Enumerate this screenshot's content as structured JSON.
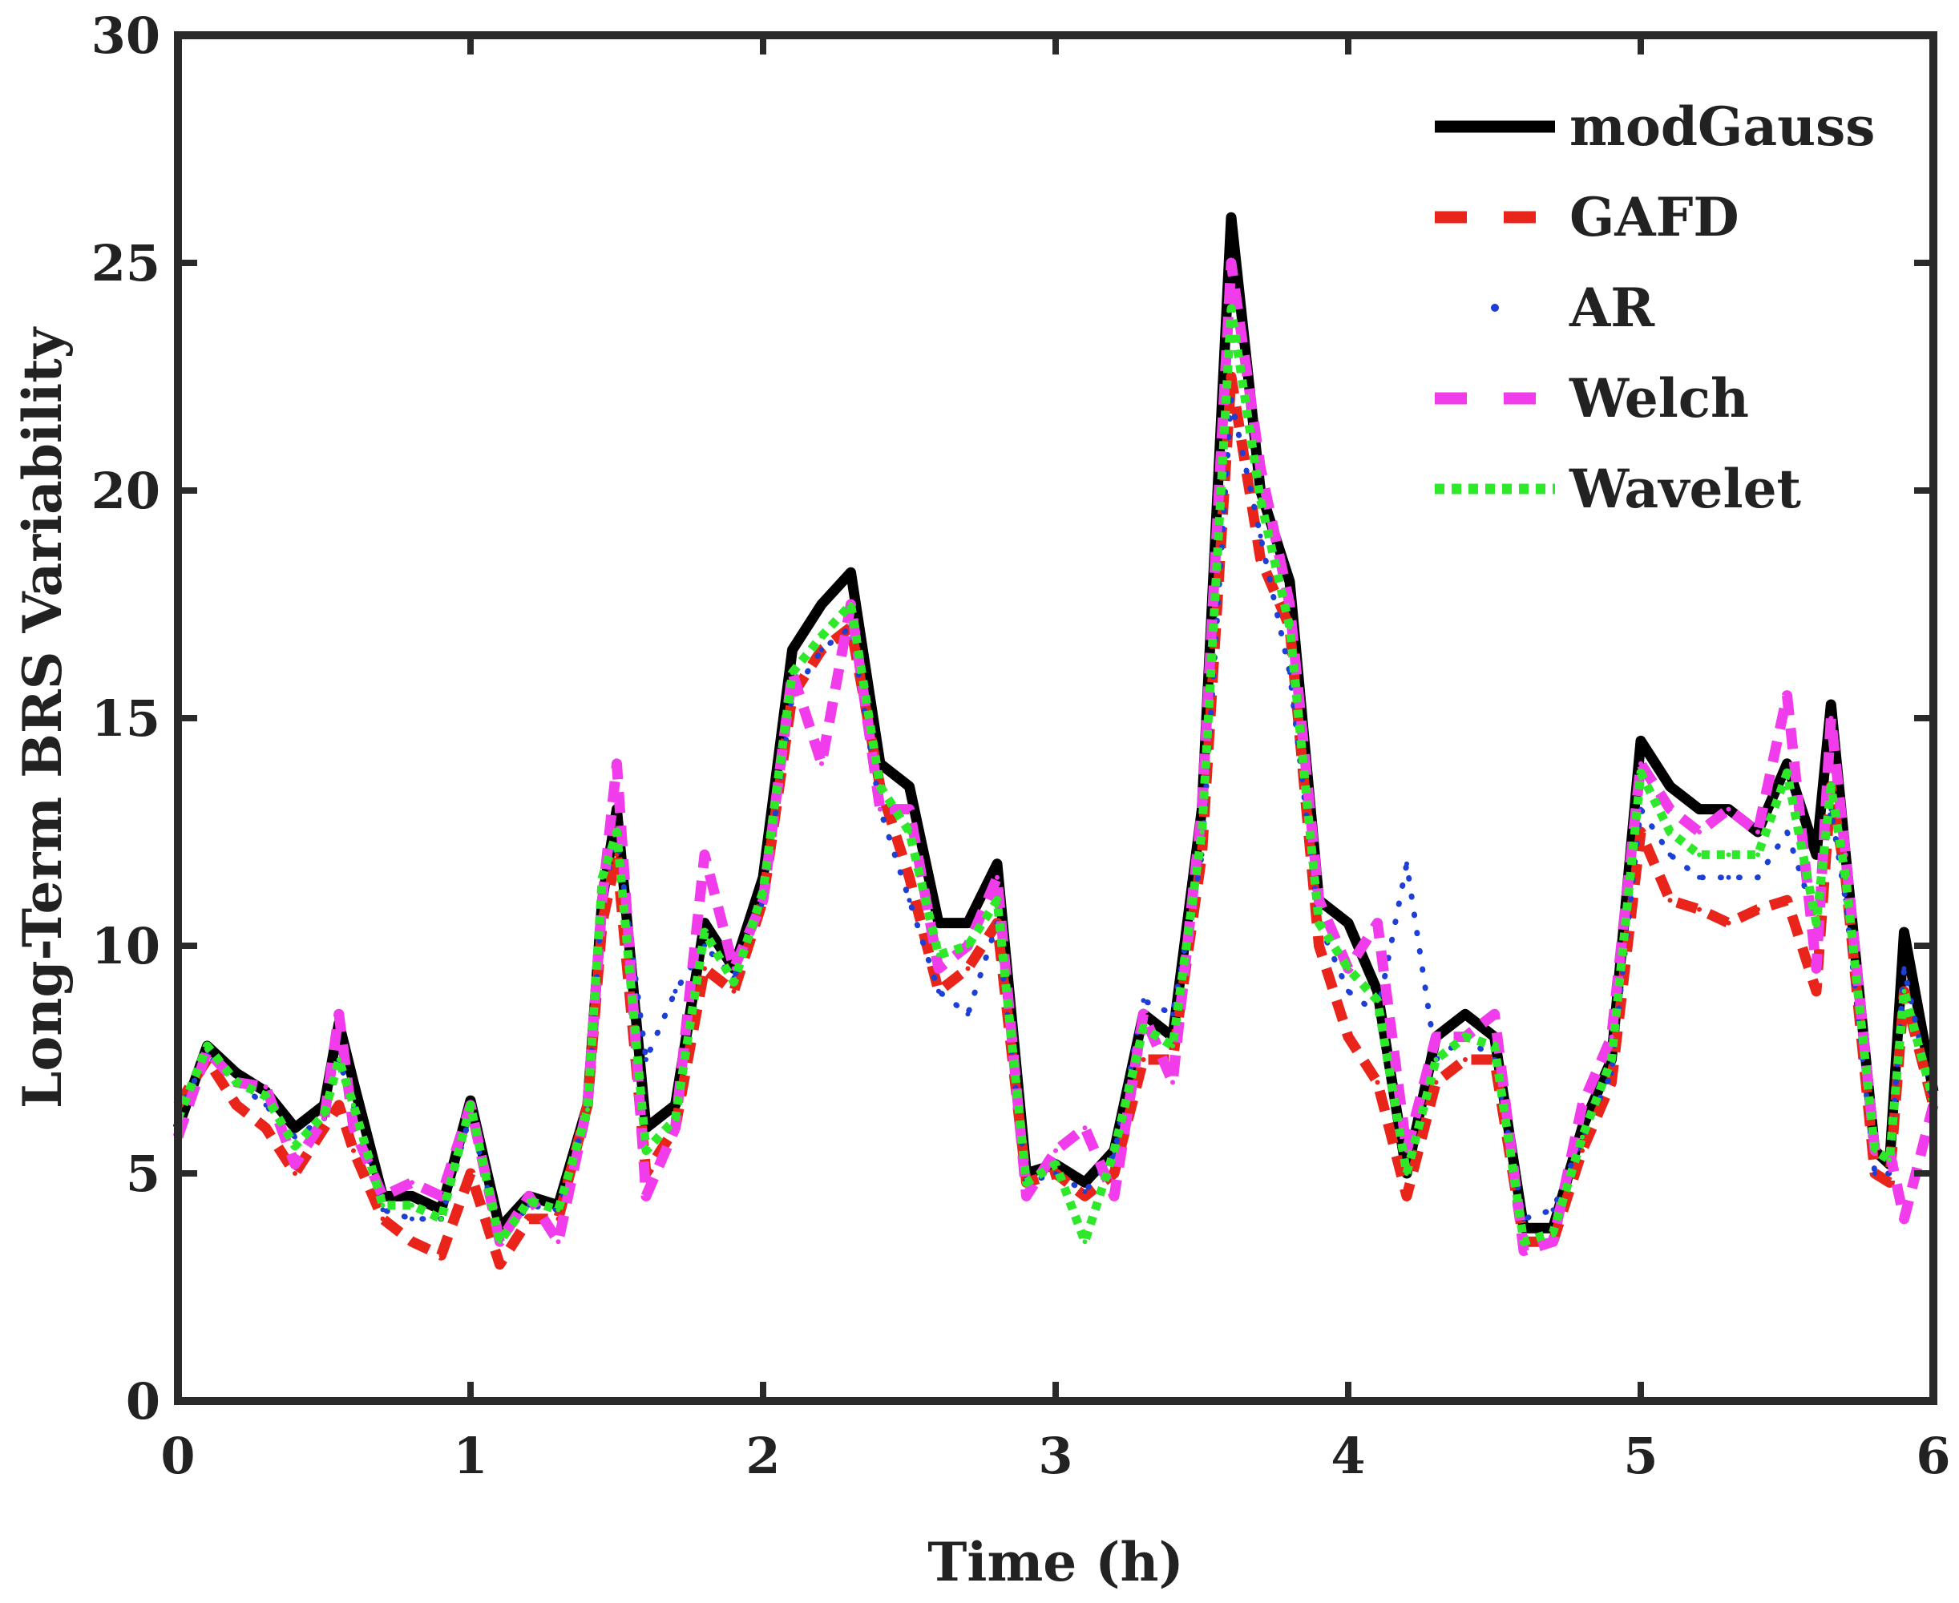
{
  "chart_data": {
    "type": "line",
    "title": "",
    "xlabel": "Time (h)",
    "ylabel": "Long-Term BRS Variability",
    "xlim": [
      0,
      6
    ],
    "ylim": [
      0,
      30
    ],
    "xticks": [
      0,
      1,
      2,
      3,
      4,
      5,
      6
    ],
    "yticks": [
      0,
      5,
      10,
      15,
      20,
      25,
      30
    ],
    "xtick_labels": [
      "0",
      "1",
      "2",
      "3",
      "4",
      "5",
      "6"
    ],
    "ytick_labels": [
      "0",
      "5",
      "10",
      "15",
      "20",
      "25",
      "30"
    ],
    "grid": false,
    "legend_position": "top-right",
    "x": [
      0,
      0.1,
      0.2,
      0.3,
      0.4,
      0.5,
      0.55,
      0.6,
      0.7,
      0.8,
      0.9,
      1.0,
      1.1,
      1.2,
      1.3,
      1.4,
      1.45,
      1.5,
      1.6,
      1.7,
      1.8,
      1.9,
      2.0,
      2.1,
      2.2,
      2.3,
      2.4,
      2.5,
      2.6,
      2.7,
      2.8,
      2.9,
      3.0,
      3.1,
      3.2,
      3.3,
      3.4,
      3.5,
      3.6,
      3.7,
      3.8,
      3.9,
      4.0,
      4.1,
      4.2,
      4.3,
      4.4,
      4.5,
      4.6,
      4.7,
      4.8,
      4.9,
      5.0,
      5.1,
      5.2,
      5.3,
      5.4,
      5.5,
      5.6,
      5.65,
      5.7,
      5.8,
      5.85,
      5.9,
      6.0
    ],
    "series": [
      {
        "name": "modGauss",
        "color": "#000000",
        "style": "solid",
        "values": [
          6.0,
          7.8,
          7.2,
          6.8,
          6.0,
          6.5,
          8.3,
          7.0,
          4.5,
          4.5,
          4.2,
          6.6,
          3.8,
          4.5,
          4.3,
          6.5,
          11.0,
          13.0,
          6.0,
          6.5,
          10.5,
          9.5,
          11.5,
          16.5,
          17.5,
          18.2,
          14.0,
          13.5,
          10.5,
          10.5,
          11.8,
          5.0,
          5.2,
          4.8,
          5.5,
          8.5,
          8.0,
          13.0,
          26.0,
          20.0,
          18.0,
          11.0,
          10.5,
          9.0,
          5.0,
          8.0,
          8.5,
          8.0,
          3.8,
          3.8,
          6.0,
          7.5,
          14.5,
          13.5,
          13.0,
          13.0,
          12.5,
          14.0,
          12.0,
          15.3,
          12.0,
          5.5,
          5.2,
          10.3,
          6.8
        ]
      },
      {
        "name": "GAFD",
        "color": "#e8241b",
        "style": "dash",
        "values": [
          6.5,
          7.5,
          6.5,
          6.0,
          5.0,
          6.0,
          6.5,
          5.5,
          4.0,
          3.5,
          3.2,
          5.0,
          3.0,
          4.0,
          4.0,
          6.5,
          10.5,
          12.0,
          5.0,
          6.0,
          9.5,
          9.0,
          11.0,
          15.5,
          16.5,
          17.0,
          13.5,
          11.5,
          9.0,
          9.5,
          10.5,
          4.8,
          5.0,
          4.5,
          5.0,
          7.5,
          7.5,
          12.0,
          22.5,
          18.5,
          17.0,
          10.0,
          8.0,
          7.0,
          4.5,
          7.0,
          7.5,
          7.5,
          3.5,
          3.5,
          5.5,
          7.0,
          12.5,
          11.0,
          10.8,
          10.5,
          10.8,
          11.0,
          9.0,
          13.5,
          11.5,
          5.0,
          4.8,
          9.0,
          6.5
        ]
      },
      {
        "name": "AR",
        "color": "#1d3fd6",
        "style": "dot-sparse",
        "values": [
          6.3,
          7.6,
          7.0,
          6.5,
          5.8,
          6.2,
          7.5,
          6.5,
          4.2,
          4.0,
          4.0,
          6.3,
          3.5,
          4.3,
          4.2,
          6.4,
          11.0,
          12.5,
          7.5,
          9.0,
          10.0,
          9.3,
          11.0,
          15.5,
          16.5,
          17.0,
          13.0,
          11.0,
          9.0,
          8.5,
          10.5,
          4.8,
          5.0,
          4.6,
          5.4,
          8.8,
          8.5,
          12.0,
          22.0,
          19.0,
          16.0,
          10.5,
          9.0,
          8.5,
          11.8,
          7.5,
          8.0,
          7.5,
          4.0,
          4.2,
          5.8,
          7.2,
          13.0,
          12.0,
          11.5,
          11.5,
          11.5,
          12.5,
          10.5,
          13.0,
          11.0,
          5.0,
          5.0,
          9.5,
          6.5
        ]
      },
      {
        "name": "Welch",
        "color": "#f03ceb",
        "style": "dash",
        "values": [
          5.8,
          7.7,
          7.0,
          6.9,
          5.2,
          6.2,
          8.5,
          6.0,
          4.5,
          4.8,
          4.5,
          6.5,
          3.5,
          4.5,
          3.5,
          6.5,
          11.0,
          14.0,
          4.5,
          6.0,
          12.0,
          9.5,
          11.0,
          16.0,
          14.0,
          17.5,
          13.0,
          13.0,
          9.5,
          10.0,
          11.5,
          4.5,
          5.5,
          6.0,
          4.5,
          8.5,
          7.0,
          13.0,
          25.0,
          20.5,
          17.5,
          11.0,
          9.5,
          10.5,
          5.5,
          8.0,
          8.0,
          8.5,
          3.3,
          3.5,
          6.5,
          8.0,
          14.0,
          13.0,
          12.5,
          13.0,
          12.5,
          15.5,
          9.5,
          15.0,
          12.0,
          5.5,
          5.5,
          4.0,
          6.5
        ]
      },
      {
        "name": "Wavelet",
        "color": "#2ee82a",
        "style": "dot",
        "values": [
          6.2,
          7.8,
          7.0,
          6.7,
          5.6,
          6.3,
          7.5,
          6.5,
          4.3,
          4.3,
          4.0,
          6.5,
          3.5,
          4.4,
          4.2,
          6.4,
          11.5,
          12.5,
          5.5,
          6.2,
          10.3,
          9.2,
          11.2,
          16.0,
          16.8,
          17.5,
          13.5,
          12.5,
          9.8,
          10.0,
          11.0,
          4.8,
          5.2,
          3.5,
          5.5,
          8.2,
          7.8,
          12.5,
          24.0,
          19.8,
          17.0,
          10.5,
          9.5,
          8.8,
          5.0,
          7.5,
          8.0,
          7.8,
          3.5,
          3.7,
          5.8,
          7.5,
          13.8,
          12.5,
          12.0,
          12.0,
          12.0,
          13.8,
          10.5,
          13.5,
          11.5,
          5.5,
          5.3,
          9.0,
          6.6
        ]
      }
    ]
  }
}
